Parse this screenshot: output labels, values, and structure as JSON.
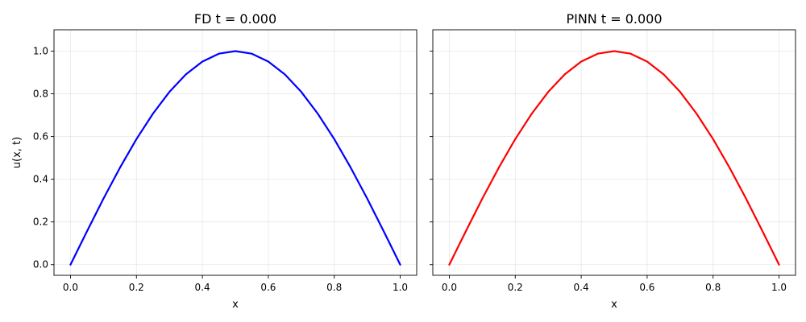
{
  "chart_data": [
    {
      "type": "line",
      "title": "FD   t = 0.000",
      "xlabel": "x",
      "ylabel": "u(x, t)",
      "xlim": [
        -0.05,
        1.05
      ],
      "ylim": [
        -0.05,
        1.1
      ],
      "xticks": [
        0.0,
        0.2,
        0.4,
        0.6,
        0.8,
        1.0
      ],
      "xtick_labels": [
        "0.0",
        "0.2",
        "0.4",
        "0.6",
        "0.8",
        "1.0"
      ],
      "yticks": [
        0.0,
        0.2,
        0.4,
        0.6,
        0.8,
        1.0
      ],
      "ytick_labels": [
        "0.0",
        "0.2",
        "0.4",
        "0.6",
        "0.8",
        "1.0"
      ],
      "show_ytick_labels": true,
      "grid": true,
      "series": [
        {
          "color": "#0000ff",
          "x": [
            0.0,
            0.05,
            0.1,
            0.15,
            0.2,
            0.25,
            0.3,
            0.35,
            0.4,
            0.45,
            0.5,
            0.55,
            0.6,
            0.65,
            0.7,
            0.75,
            0.8,
            0.85,
            0.9,
            0.95,
            1.0
          ],
          "y": [
            0.0,
            0.156,
            0.309,
            0.454,
            0.588,
            0.707,
            0.809,
            0.891,
            0.951,
            0.988,
            1.0,
            0.988,
            0.951,
            0.891,
            0.809,
            0.707,
            0.588,
            0.454,
            0.309,
            0.156,
            0.0
          ]
        }
      ]
    },
    {
      "type": "line",
      "title": "PINN   t = 0.000",
      "xlabel": "x",
      "ylabel": "",
      "xlim": [
        -0.05,
        1.05
      ],
      "ylim": [
        -0.05,
        1.1
      ],
      "xticks": [
        0.0,
        0.2,
        0.4,
        0.6,
        0.8,
        1.0
      ],
      "xtick_labels": [
        "0.0",
        "0.2",
        "0.4",
        "0.6",
        "0.8",
        "1.0"
      ],
      "yticks": [
        0.0,
        0.2,
        0.4,
        0.6,
        0.8,
        1.0
      ],
      "ytick_labels": [],
      "show_ytick_labels": false,
      "grid": true,
      "series": [
        {
          "color": "#ff0000",
          "x": [
            0.0,
            0.05,
            0.1,
            0.15,
            0.2,
            0.25,
            0.3,
            0.35,
            0.4,
            0.45,
            0.5,
            0.55,
            0.6,
            0.65,
            0.7,
            0.75,
            0.8,
            0.85,
            0.9,
            0.95,
            1.0
          ],
          "y": [
            0.0,
            0.156,
            0.309,
            0.454,
            0.588,
            0.707,
            0.809,
            0.891,
            0.951,
            0.988,
            1.0,
            0.988,
            0.951,
            0.891,
            0.809,
            0.707,
            0.588,
            0.454,
            0.309,
            0.156,
            0.0
          ]
        }
      ]
    }
  ]
}
